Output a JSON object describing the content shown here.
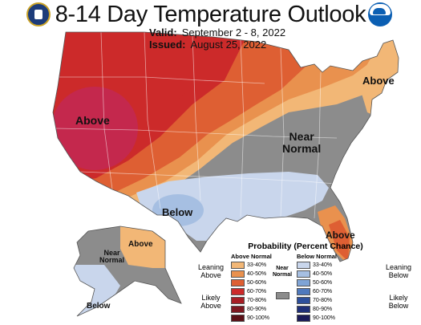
{
  "title": "8-14 Day Temperature Outlook",
  "valid_label": "Valid:",
  "valid_value": "September 2 - 8, 2022",
  "issued_label": "Issued:",
  "issued_value": "August 25, 2022",
  "map_labels": {
    "west_above": "Above",
    "northeast_above": "Above",
    "central_near_1": "Near",
    "central_near_2": "Normal",
    "texas_below": "Below",
    "florida_above": "Above",
    "alaska_above": "Above",
    "alaska_near_1": "Near",
    "alaska_near_2": "Normal",
    "alaska_below": "Below"
  },
  "legend": {
    "title": "Probability (Percent Chance)",
    "above_header": "Above Normal",
    "below_header": "Below Normal",
    "near_1": "Near",
    "near_2": "Normal",
    "leaning_above_1": "Leaning",
    "leaning_above_2": "Above",
    "likely_above_1": "Likely",
    "likely_above_2": "Above",
    "leaning_below_1": "Leaning",
    "leaning_below_2": "Below",
    "likely_below_1": "Likely",
    "likely_below_2": "Below",
    "above_bins": [
      {
        "label": "33-40%",
        "color": "#f2b776"
      },
      {
        "label": "40-50%",
        "color": "#e9914e"
      },
      {
        "label": "50-60%",
        "color": "#de5f33"
      },
      {
        "label": "60-70%",
        "color": "#cc2a2a"
      },
      {
        "label": "70-80%",
        "color": "#a71d24"
      },
      {
        "label": "80-90%",
        "color": "#7d1720"
      },
      {
        "label": "90-100%",
        "color": "#5a0f16"
      }
    ],
    "below_bins": [
      {
        "label": "33-40%",
        "color": "#c9d6ec"
      },
      {
        "label": "40-50%",
        "color": "#a6bfe2"
      },
      {
        "label": "50-60%",
        "color": "#7fa4d6"
      },
      {
        "label": "60-70%",
        "color": "#4f79bd"
      },
      {
        "label": "70-80%",
        "color": "#2d4f9c"
      },
      {
        "label": "80-90%",
        "color": "#1f2f78"
      },
      {
        "label": "90-100%",
        "color": "#1a1a58"
      }
    ],
    "near_color": "#8c8c8c"
  },
  "logos": {
    "left": "commerce-seal-icon",
    "right": "noaa-logo-icon"
  }
}
